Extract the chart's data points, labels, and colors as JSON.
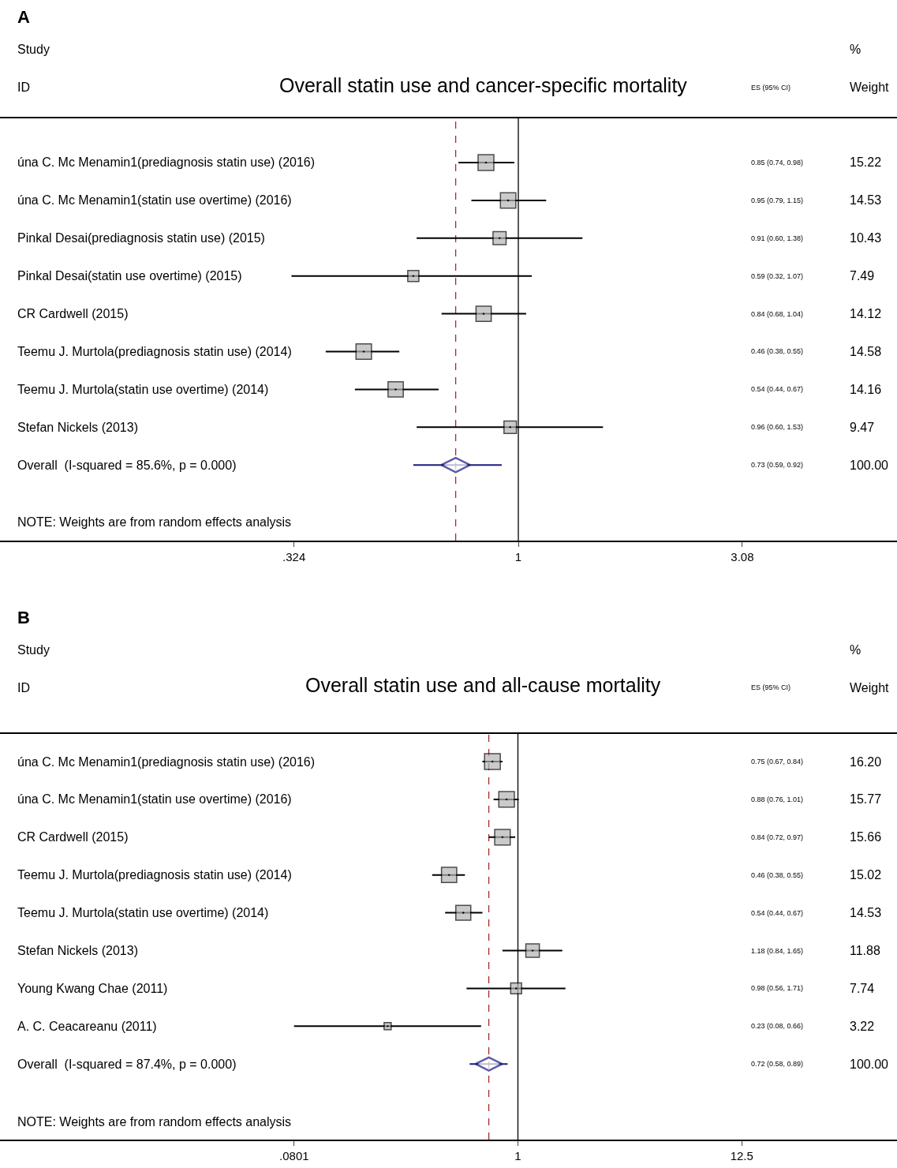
{
  "chart_data": [
    {
      "type": "bubble",
      "orientation": "horizontal",
      "title": "Overall statin use and cancer-specific mortality",
      "categories": [
        "úna C. Mc Menamin1(prediagnosis statin use) (2016)",
        "úna C. Mc Menamin1(statin use overtime) (2016)",
        "Pinkal Desai(prediagnosis statin use) (2015)",
        "Pinkal Desai(statin use overtime) (2015)",
        "CR Cardwell (2015)",
        "Teemu J. Murtola(prediagnosis statin use) (2014)",
        "Teemu J. Murtola(statin use overtime) (2014)",
        "Stefan Nickels (2013)",
        "Overall  (I-squared = 85.6%, p = 0.000)"
      ],
      "series": [
        {
          "color": "#b4b4b4",
          "marker": "square",
          "values": [
            0.85,
            0.95,
            0.91,
            0.59,
            0.84,
            0.46,
            0.54,
            0.96,
            null
          ],
          "errors": [
            [
              0.74,
              0.98
            ],
            [
              0.79,
              1.15
            ],
            [
              0.6,
              1.38
            ],
            [
              0.32,
              1.07
            ],
            [
              0.68,
              1.04
            ],
            [
              0.38,
              0.55
            ],
            [
              0.44,
              0.67
            ],
            [
              0.6,
              1.53
            ],
            null
          ],
          "sizes": [
            1,
            0.955,
            0.685,
            0.492,
            0.928,
            0.958,
            0.93,
            0.622,
            null
          ]
        },
        {
          "type": "scatter",
          "color": "#1a1a80",
          "marker": "diamond",
          "values": [
            null,
            null,
            null,
            null,
            null,
            null,
            null,
            null,
            0.73
          ],
          "errors": [
            null,
            null,
            null,
            null,
            null,
            null,
            null,
            null,
            [
              0.59,
              0.92
            ]
          ]
        }
      ],
      "log": "x",
      "xlim": [
        0.074,
        6.7
      ],
      "xticks": [
        {
          "value": 0.324,
          "label": ".324"
        },
        {
          "value": 1,
          "label": "1"
        },
        {
          "value": 3.08,
          "label": "3.08"
        }
      ],
      "ref_lines": [
        {
          "axis": "x",
          "value": 1,
          "label": null,
          "color": "#000000",
          "line_style": "solid"
        },
        {
          "axis": "x",
          "value": 0.73,
          "label": null,
          "color": "#a52a2a",
          "line_style": "dashed"
        }
      ],
      "annotations": [
        "A",
        "Study",
        "ID",
        "ES (95% CI)",
        "%",
        "Weight",
        "NOTE: Weights are from random effects analysis",
        "0.85 (0.74, 0.98)",
        "0.95 (0.79, 1.15)",
        "0.91 (0.60, 1.38)",
        "0.59 (0.32, 1.07)",
        "0.84 (0.68, 1.04)",
        "0.46 (0.38, 0.55)",
        "0.54 (0.44, 0.67)",
        "0.96 (0.60, 1.53)",
        "0.73 (0.59, 0.92)",
        "15.22",
        "14.53",
        "10.43",
        "7.49",
        "14.12",
        "14.58",
        "14.16",
        "9.47",
        "100.00"
      ]
    },
    {
      "type": "bubble",
      "orientation": "horizontal",
      "title": "Overall statin use and all-cause mortality",
      "categories": [
        "úna C. Mc Menamin1(prediagnosis statin use) (2016)",
        "úna C. Mc Menamin1(statin use overtime) (2016)",
        "CR Cardwell (2015)",
        "Teemu J. Murtola(prediagnosis statin use) (2014)",
        "Teemu J. Murtola(statin use overtime) (2014)",
        "Stefan Nickels (2013)",
        "Young Kwang Chae (2011)",
        "A. C. Ceacareanu (2011)",
        "Overall  (I-squared = 87.4%, p = 0.000)"
      ],
      "series": [
        {
          "color": "#b4b4b4",
          "marker": "square",
          "values": [
            0.75,
            0.88,
            0.84,
            0.46,
            0.54,
            1.18,
            0.98,
            0.23,
            null
          ],
          "errors": [
            [
              0.67,
              0.84
            ],
            [
              0.76,
              1.01
            ],
            [
              0.72,
              0.97
            ],
            [
              0.38,
              0.55
            ],
            [
              0.44,
              0.67
            ],
            [
              0.84,
              1.65
            ],
            [
              0.56,
              1.71
            ],
            [
              0.08,
              0.66
            ],
            null
          ],
          "sizes": [
            1,
            0.973,
            0.967,
            0.927,
            0.897,
            0.733,
            0.478,
            0.199,
            null
          ]
        },
        {
          "type": "scatter",
          "color": "#1a1a80",
          "marker": "diamond",
          "values": [
            null,
            null,
            null,
            null,
            null,
            null,
            null,
            null,
            0.72
          ],
          "errors": [
            null,
            null,
            null,
            null,
            null,
            null,
            null,
            null,
            [
              0.58,
              0.89
            ]
          ]
        }
      ],
      "log": "x",
      "xlim": [
        0.0029,
        72
      ],
      "xticks": [
        {
          "value": 0.0801,
          "label": ".0801"
        },
        {
          "value": 1,
          "label": "1"
        },
        {
          "value": 12.5,
          "label": "12.5"
        }
      ],
      "ref_lines": [
        {
          "axis": "x",
          "value": 1,
          "label": null,
          "color": "#000000",
          "line_style": "solid"
        },
        {
          "axis": "x",
          "value": 0.72,
          "label": null,
          "color": "#a52a2a",
          "line_style": "dashed"
        }
      ],
      "annotations": [
        "B",
        "Study",
        "ID",
        "ES (95% CI)",
        "%",
        "Weight",
        "NOTE: Weights are from random effects analysis",
        "0.75 (0.67, 0.84)",
        "0.88 (0.76, 1.01)",
        "0.84 (0.72, 0.97)",
        "0.46 (0.38, 0.55)",
        "0.54 (0.44, 0.67)",
        "1.18 (0.84, 1.65)",
        "0.98 (0.56, 1.71)",
        "0.23 (0.08, 0.66)",
        "0.72 (0.58, 0.89)",
        "16.20",
        "15.77",
        "15.66",
        "15.02",
        "14.53",
        "11.88",
        "7.74",
        "3.22",
        "100.00"
      ]
    }
  ]
}
